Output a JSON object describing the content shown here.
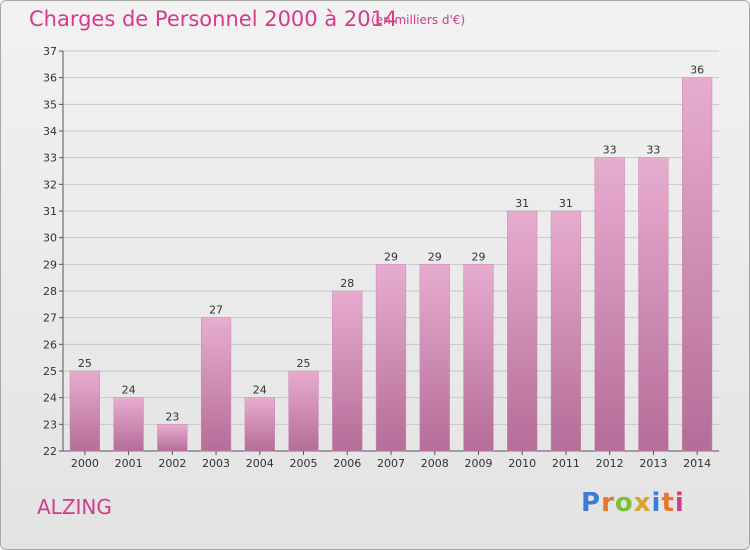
{
  "page": {
    "title": "Charges de Personnel 2000 à 2014",
    "subtitle": "(en milliers d'€)",
    "commune": "ALZING",
    "logo_text": "Proxiti"
  },
  "colors": {
    "accent": "#d63a8c",
    "bar_top": "#e8acd0",
    "bar_bottom": "#b46d98",
    "grid": "#c8c8c8"
  },
  "chart_data": {
    "type": "bar",
    "title": "Charges de Personnel 2000 à 2014",
    "subtitle": "(en milliers d'€)",
    "xlabel": "",
    "ylabel": "",
    "categories": [
      "2000",
      "2001",
      "2002",
      "2003",
      "2004",
      "2005",
      "2006",
      "2007",
      "2008",
      "2009",
      "2010",
      "2011",
      "2012",
      "2013",
      "2014"
    ],
    "values": [
      25,
      24,
      23,
      27,
      24,
      25,
      28,
      29,
      29,
      29,
      31,
      31,
      33,
      33,
      36
    ],
    "ylim": [
      22,
      37
    ],
    "yticks": [
      22,
      23,
      24,
      25,
      26,
      27,
      28,
      29,
      30,
      31,
      32,
      33,
      34,
      35,
      36,
      37
    ],
    "grid": true,
    "legend": "none"
  }
}
